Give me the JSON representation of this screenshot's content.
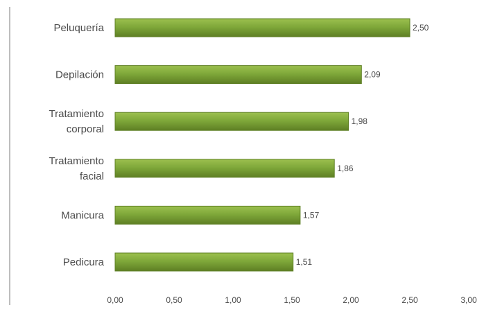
{
  "chart_data": {
    "type": "bar",
    "orientation": "horizontal",
    "categories": [
      [
        "Peluquería"
      ],
      [
        "Depilación"
      ],
      [
        "Tratamiento",
        "corporal"
      ],
      [
        "Tratamiento",
        "facial"
      ],
      [
        "Manicura"
      ],
      [
        "Pedicura"
      ]
    ],
    "values": [
      2.5,
      2.09,
      1.98,
      1.86,
      1.57,
      1.51
    ],
    "value_labels": [
      "2,50",
      "2,09",
      "1,98",
      "1,86",
      "1,57",
      "1,51"
    ],
    "xticks": [
      0,
      0.5,
      1.0,
      1.5,
      2.0,
      2.5,
      3.0
    ],
    "xtick_labels": [
      "0,00",
      "0,50",
      "1,00",
      "1,50",
      "2,00",
      "2,50",
      "3,00"
    ],
    "xlim": [
      0,
      3.0
    ],
    "title": "",
    "xlabel": "",
    "ylabel": "",
    "grid": false,
    "legend": "none",
    "colors": {
      "bar": "#7fa83a",
      "bar_top": "#9cc04f",
      "bar_edge": "#5e7f24",
      "axis": "#bdbdbd",
      "text": "#4a4a4a"
    }
  }
}
